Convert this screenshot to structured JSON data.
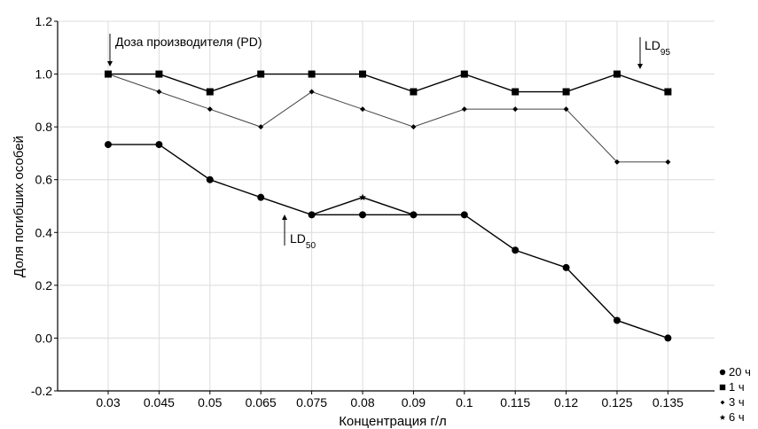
{
  "chart_data": {
    "type": "line",
    "xlabel": "Концентрация г/л",
    "ylabel": "Доля погибших особей",
    "categories": [
      "0.03",
      "0.045",
      "0.05",
      "0.065",
      "0.075",
      "0.08",
      "0.09",
      "0.1",
      "0.115",
      "0.12",
      "0.125",
      "0.135"
    ],
    "ylim": [
      -0.2,
      1.2
    ],
    "yticks": [
      "-0.2",
      "0.0",
      "0.2",
      "0.4",
      "0.6",
      "0.8",
      "1.0",
      "1.2"
    ],
    "grid": true,
    "legend_position": "bottom-right",
    "series": [
      {
        "name": "20 ч",
        "marker": "circle",
        "values": [
          0.733,
          0.733,
          0.6,
          0.533,
          0.467,
          0.467,
          0.467,
          0.467,
          0.333,
          0.267,
          0.067,
          0.0
        ]
      },
      {
        "name": "1 ч",
        "marker": "square",
        "values": [
          1.0,
          1.0,
          0.933,
          1.0,
          1.0,
          1.0,
          0.933,
          1.0,
          0.933,
          0.933,
          1.0,
          0.933
        ]
      },
      {
        "name": "3 ч",
        "marker": "diamond",
        "values": [
          1.0,
          0.933,
          0.867,
          0.8,
          0.933,
          0.867,
          0.8,
          0.867,
          0.867,
          0.867,
          0.667,
          0.667
        ]
      },
      {
        "name": "6 ч",
        "marker": "star",
        "values": [
          null,
          null,
          null,
          null,
          0.467,
          0.533,
          0.467,
          null,
          null,
          null,
          null,
          null
        ]
      }
    ],
    "annotations": [
      {
        "text": "Доза производителя (PD)",
        "category": "0.03",
        "arrow": "down"
      },
      {
        "main": "LD",
        "sub": "95",
        "category": "0.125",
        "arrow": "down"
      },
      {
        "main": "LD",
        "sub": "50",
        "category": "0.075",
        "arrow": "up"
      }
    ]
  }
}
